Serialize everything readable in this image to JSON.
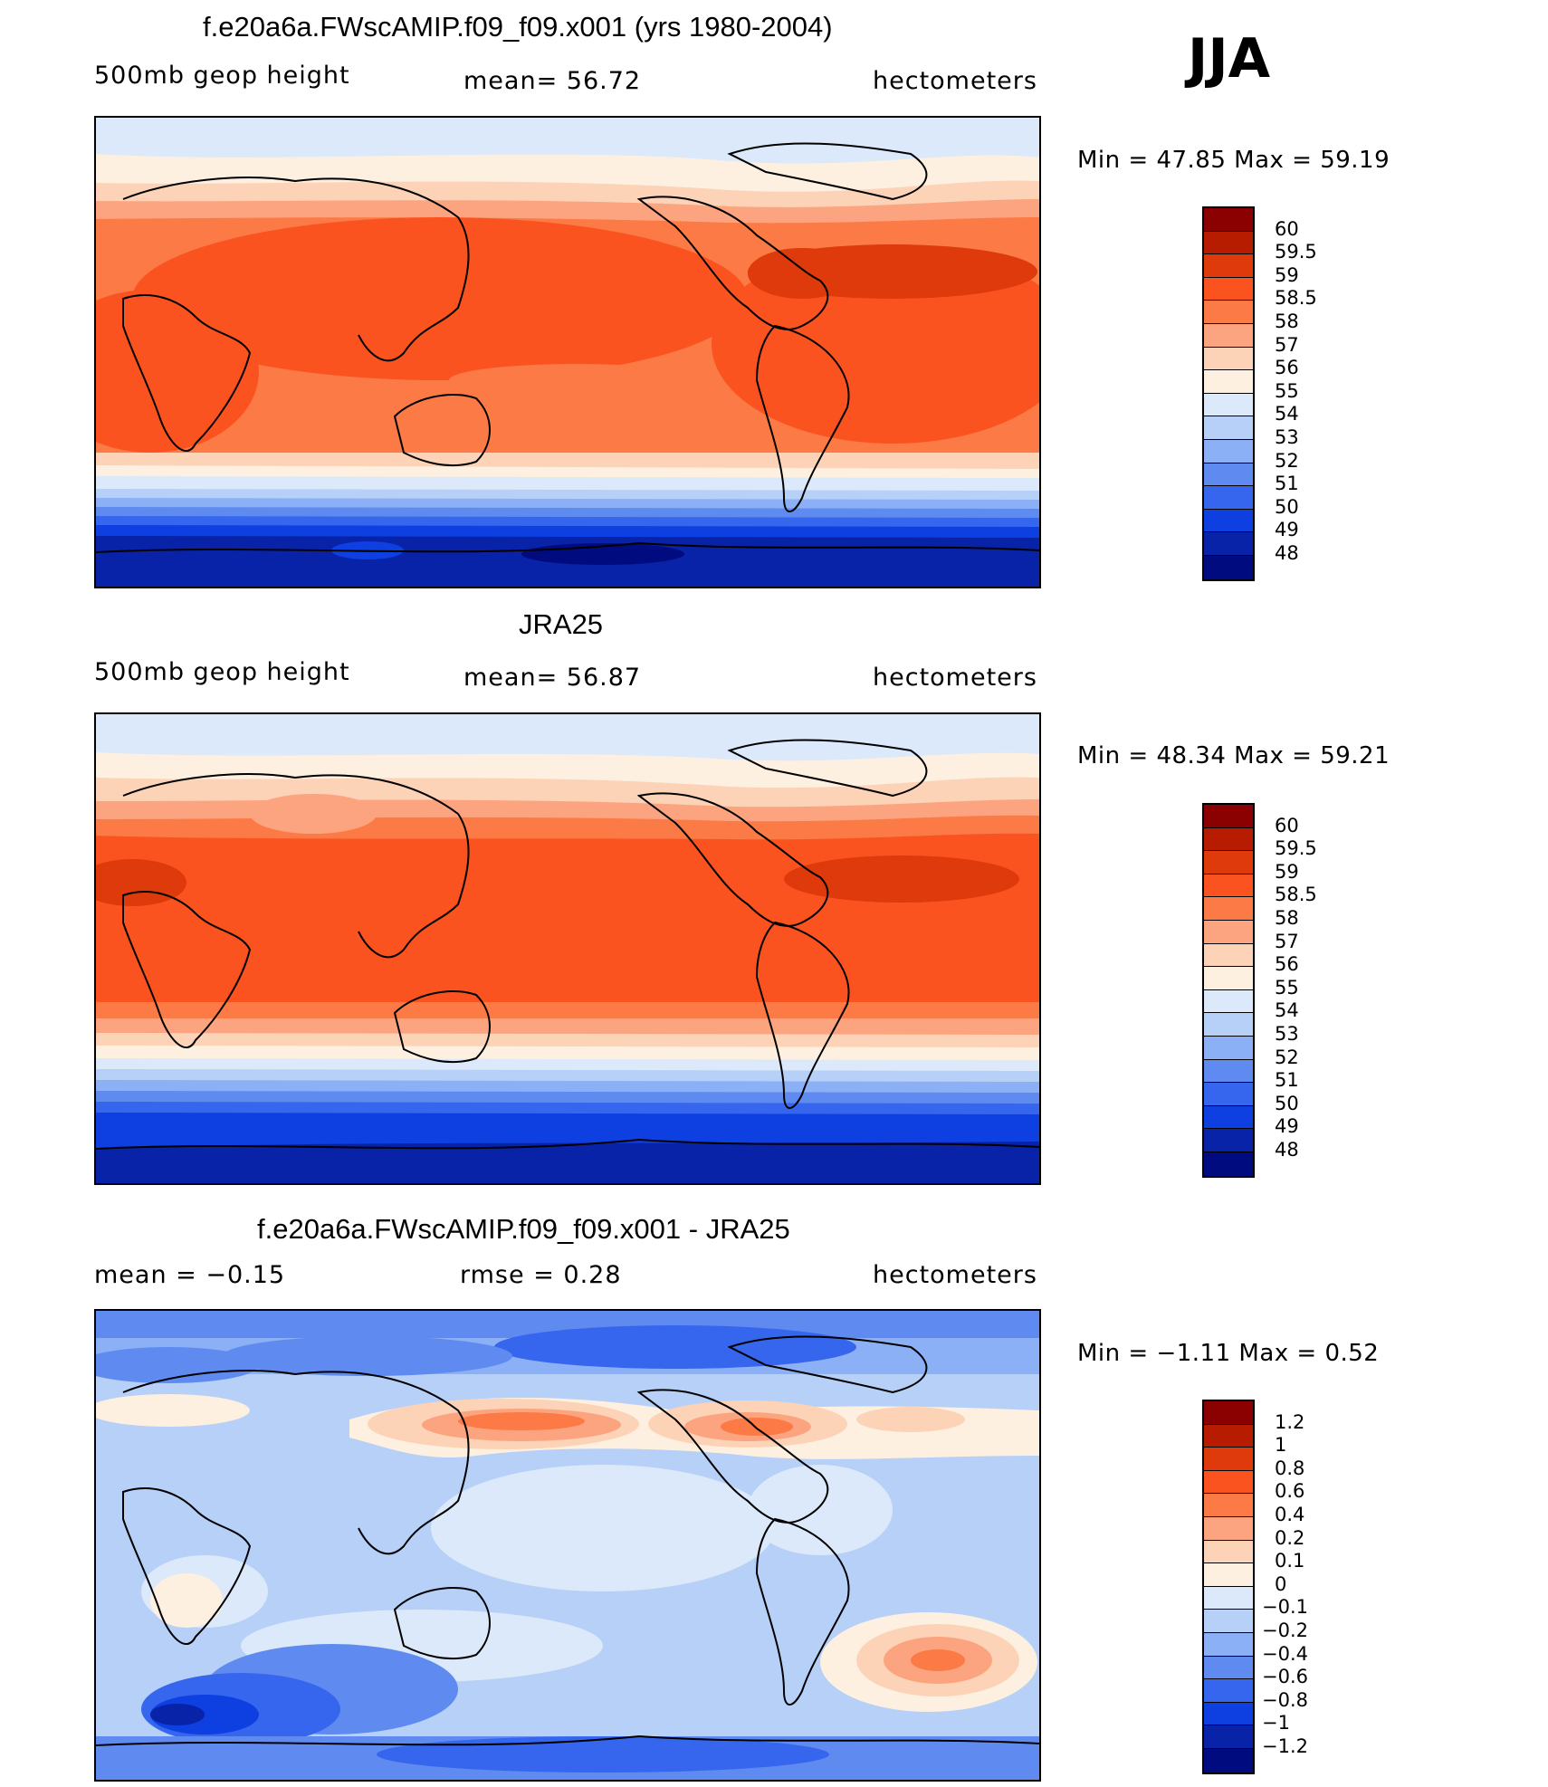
{
  "season": "JJA",
  "panels": [
    {
      "title": "f.e20a6a.FWscAMIP.f09_f09.x001 (yrs 1980-2004)",
      "left_label": "500mb  geop  height",
      "center_label": "mean=   56.72",
      "units": "hectometers",
      "min_max": "Min  =    47.85  Max  =    59.19",
      "map_name": "model-500mb-geop-height-map",
      "legend_values": [
        "60",
        "59.5",
        "59",
        "58.5",
        "58",
        "57",
        "56",
        "55",
        "54",
        "53",
        "52",
        "51",
        "50",
        "49",
        "48"
      ],
      "legend_colors": [
        "#8b0000",
        "#b81c00",
        "#de3a0b",
        "#fb5320",
        "#fb7a45",
        "#fca47f",
        "#fdd3b8",
        "#fdf0e0",
        "#dce9fa",
        "#b6d0f7",
        "#8cb0f6",
        "#5f8bf0",
        "#3666ee",
        "#0e3fe0",
        "#0822a8",
        "#000b80"
      ]
    },
    {
      "title": "JRA25",
      "left_label": "500mb  geop  height",
      "center_label": "mean=   56.87",
      "units": "hectometers",
      "min_max": "Min  =    48.34  Max  =    59.21",
      "map_name": "jra25-500mb-geop-height-map",
      "legend_values": [
        "60",
        "59.5",
        "59",
        "58.5",
        "58",
        "57",
        "56",
        "55",
        "54",
        "53",
        "52",
        "51",
        "50",
        "49",
        "48"
      ],
      "legend_colors": [
        "#8b0000",
        "#b81c00",
        "#de3a0b",
        "#fb5320",
        "#fb7a45",
        "#fca47f",
        "#fdd3b8",
        "#fdf0e0",
        "#dce9fa",
        "#b6d0f7",
        "#8cb0f6",
        "#5f8bf0",
        "#3666ee",
        "#0e3fe0",
        "#0822a8",
        "#000b80"
      ]
    },
    {
      "title": "f.e20a6a.FWscAMIP.f09_f09.x001 - JRA25",
      "left_label": "mean  =    −0.15",
      "center_label": "rmse  =     0.28",
      "units": "hectometers",
      "min_max": "Min  =    −1.11  Max  =      0.52",
      "map_name": "difference-map",
      "legend_values": [
        "1.2",
        "1",
        "0.8",
        "0.6",
        "0.4",
        "0.2",
        "0.1",
        "0",
        "−0.1",
        "−0.2",
        "−0.4",
        "−0.6",
        "−0.8",
        "−1",
        "−1.2"
      ],
      "legend_colors": [
        "#8b0000",
        "#b81c00",
        "#de3a0b",
        "#fb5320",
        "#fb7a45",
        "#fca47f",
        "#fdd3b8",
        "#fdf0e0",
        "#dce9fa",
        "#b6d0f7",
        "#8cb0f6",
        "#5f8bf0",
        "#3666ee",
        "#0e3fe0",
        "#0822a8",
        "#000b80"
      ]
    }
  ]
}
